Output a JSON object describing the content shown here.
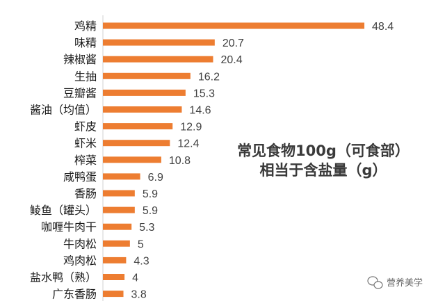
{
  "chart_data": {
    "type": "bar",
    "orientation": "horizontal",
    "title_lines": [
      "常见食物100g（可食部）",
      "相当于含盐量（g）"
    ],
    "categories": [
      "鸡精",
      "味精",
      "辣椒酱",
      "生抽",
      "豆瓣酱",
      "酱油（均值）",
      "虾皮",
      "虾米",
      "榨菜",
      "咸鸭蛋",
      "香肠",
      "鲮鱼（罐头）",
      "咖喱牛肉干",
      "牛肉松",
      "鸡肉松",
      "盐水鸭（熟）",
      "广东香肠"
    ],
    "values": [
      48.4,
      20.7,
      20.4,
      16.2,
      15.3,
      14.6,
      12.9,
      12.4,
      10.8,
      6.9,
      5.9,
      5.9,
      5.3,
      5,
      4.3,
      4,
      3.8
    ],
    "value_labels": [
      "48.4",
      "20.7",
      "20.4",
      "16.2",
      "15.3",
      "14.6",
      "12.9",
      "12.4",
      "10.8",
      "6.9",
      "5.9",
      "5.9",
      "5.3",
      "5",
      "4.3",
      "4",
      "3.8"
    ],
    "xlim": [
      0,
      52
    ],
    "grid": false,
    "bar_color": "#ED7D31"
  },
  "watermark": {
    "icon": "wechat-icon",
    "text": "营养美学"
  }
}
